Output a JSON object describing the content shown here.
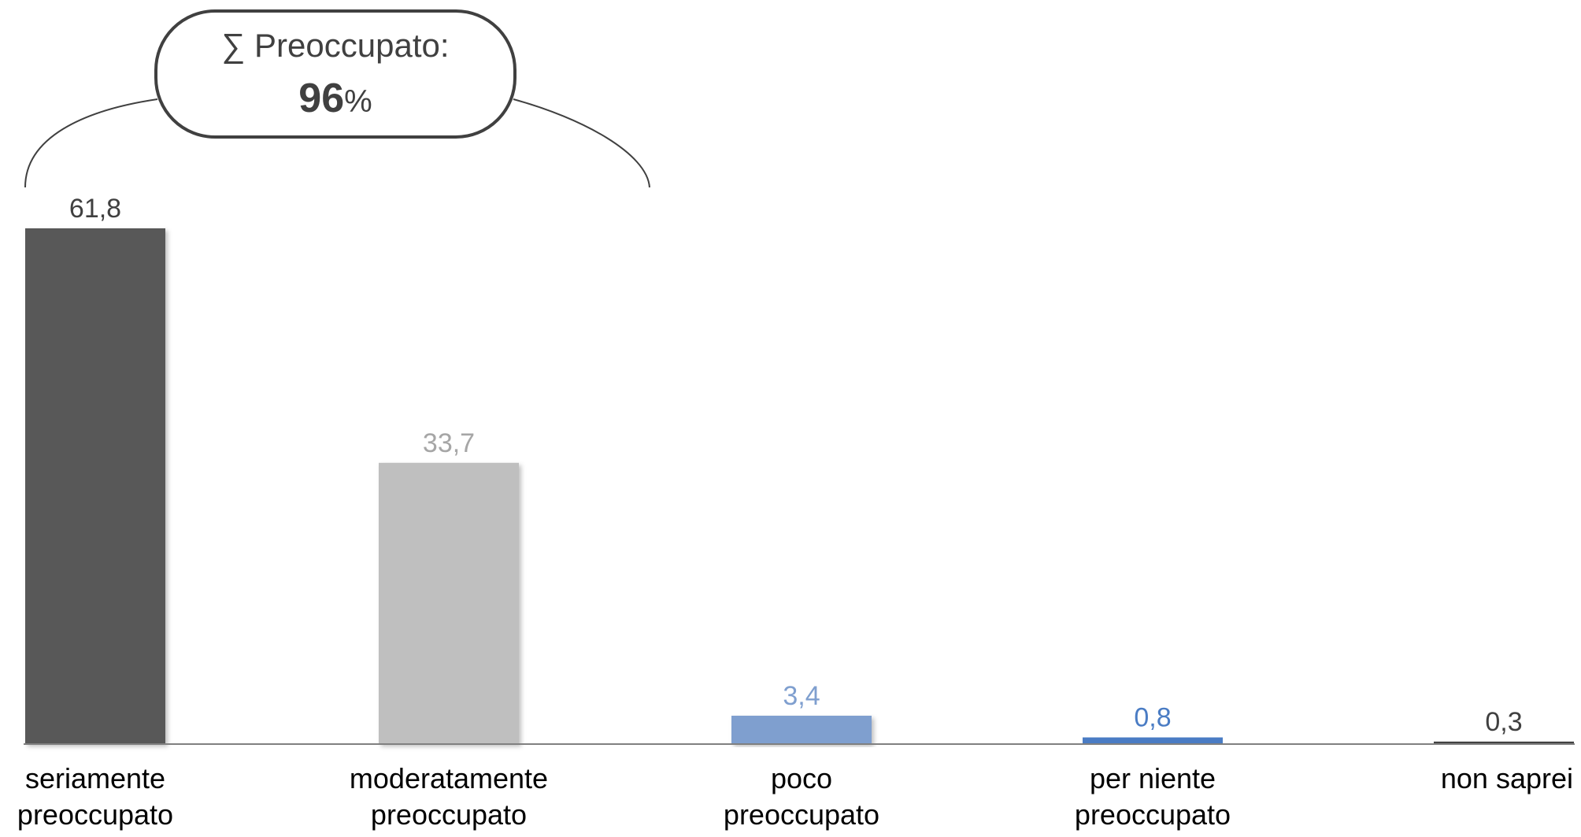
{
  "chart_data": {
    "type": "bar",
    "title": "",
    "xlabel": "",
    "ylabel": "",
    "ylim": [
      0,
      65
    ],
    "grid": false,
    "categories": [
      [
        "seriamente",
        "preoccupato"
      ],
      [
        "moderatamente",
        "preoccupato"
      ],
      [
        "poco",
        "preoccupato"
      ],
      [
        "per niente",
        "preoccupato"
      ],
      [
        "non saprei"
      ]
    ],
    "values": [
      61.8,
      33.7,
      3.4,
      0.8,
      0.3
    ],
    "value_labels": [
      "61,8",
      "33,7",
      "3,4",
      "0,8",
      "0,3"
    ],
    "colors": [
      "#595959",
      "#bfbfbf",
      "#7f9fcf",
      "#4a7cc4",
      "#404040"
    ],
    "label_colors": [
      "#404040",
      "#a6a6a6",
      "#7f9fcf",
      "#4a7cc4",
      "#404040"
    ],
    "annotation": {
      "prefix": "∑ Preoccupato:",
      "value": "96",
      "suffix": "%",
      "spans_categories": [
        0,
        1
      ]
    }
  }
}
